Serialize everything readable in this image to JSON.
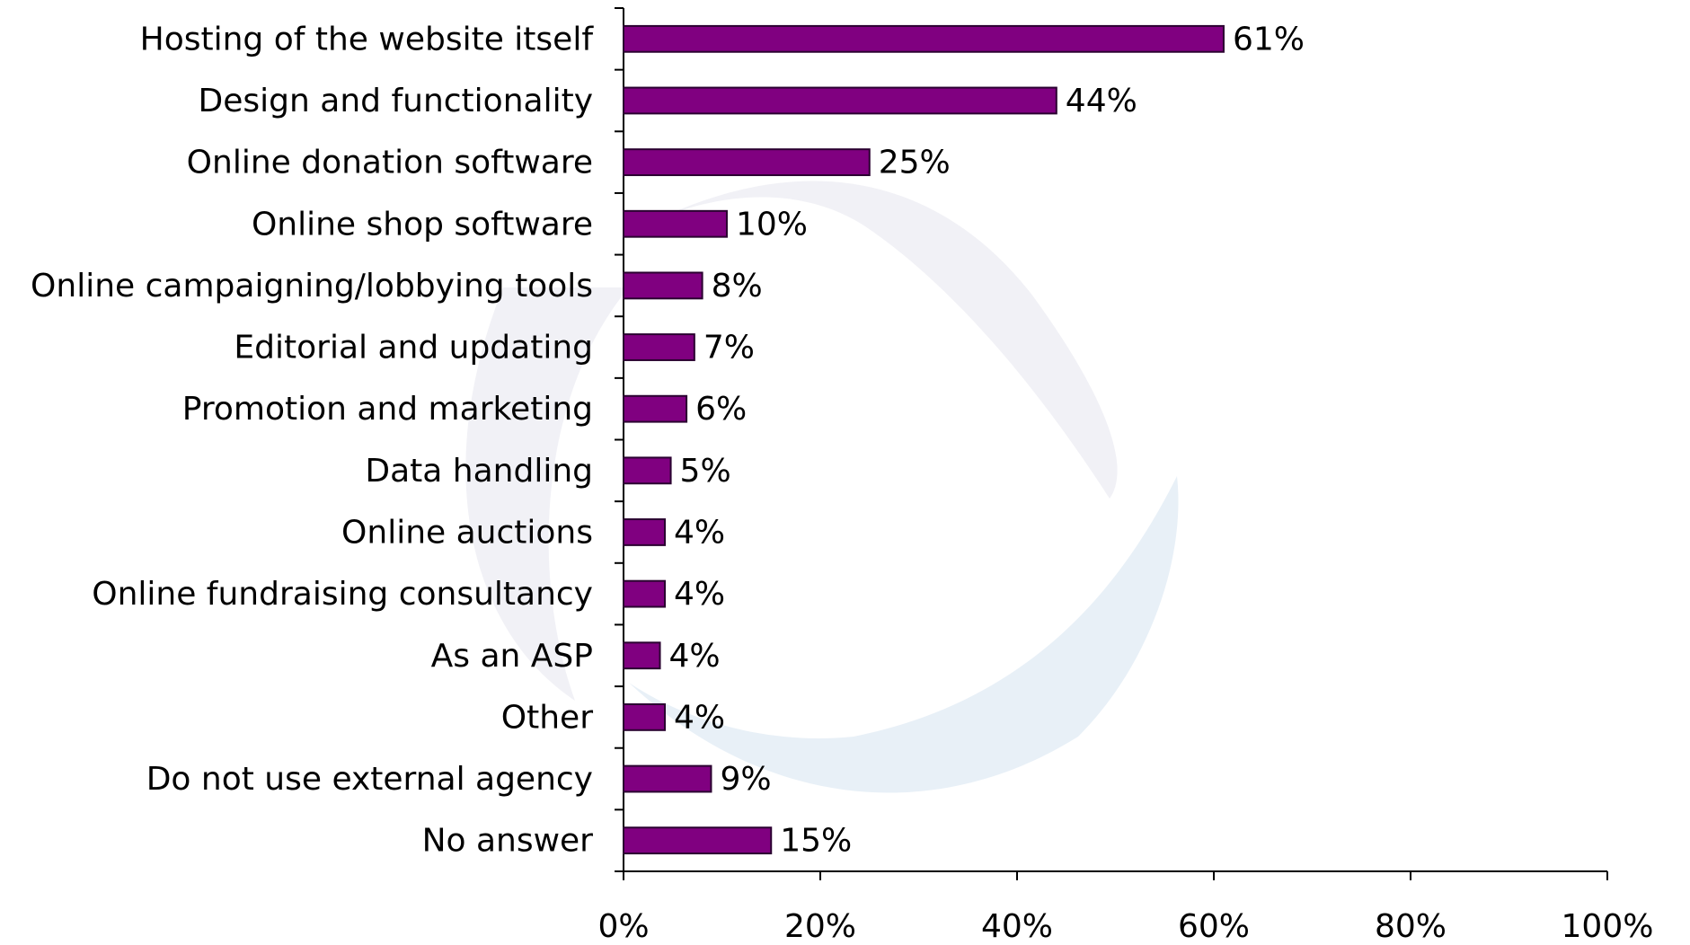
{
  "chart_data": {
    "type": "hbar",
    "categories": [
      "Hosting of the website itself",
      "Design and functionality",
      "Online donation software",
      "Online shop software",
      "Online campaigning/lobbying tools",
      "Editorial and updating",
      "Promotion and marketing",
      "Data handling",
      "Online auctions",
      "Online fundraising consultancy",
      "As an ASP",
      "Other",
      "Do not use external agency",
      "No answer"
    ],
    "values": [
      61,
      44,
      25,
      10.5,
      8,
      7.2,
      6.4,
      4.8,
      4.2,
      4.2,
      3.7,
      4.2,
      8.9,
      15
    ],
    "value_labels": [
      "61%",
      "44%",
      "25%",
      "10%",
      "8%",
      "7%",
      "6%",
      "5%",
      "4%",
      "4%",
      "4%",
      "4%",
      "9%",
      "15%"
    ],
    "color": "#800080",
    "xlim": [
      0,
      100
    ],
    "xticks": [
      {
        "value": 0,
        "label": "0%"
      },
      {
        "value": 20,
        "label": "20%"
      },
      {
        "value": 40,
        "label": "40%"
      },
      {
        "value": 60,
        "label": "60%"
      },
      {
        "value": 80,
        "label": "80%"
      },
      {
        "value": 100,
        "label": "100%"
      }
    ]
  }
}
